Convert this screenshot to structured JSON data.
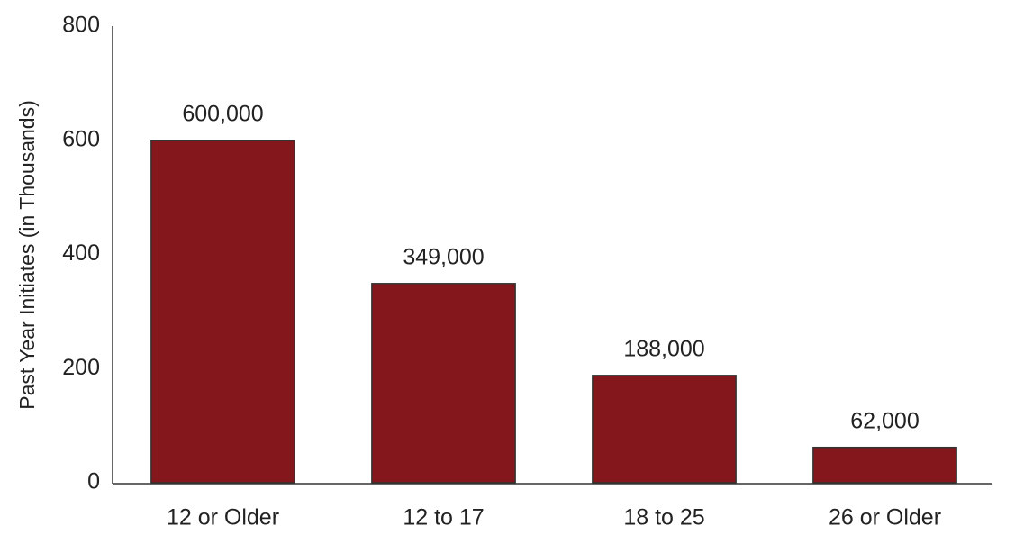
{
  "chart_data": {
    "type": "bar",
    "y_label": "Past Year Initiates (in Thousands)",
    "categories": [
      "12 or Older",
      "12 to 17",
      "18 to 25",
      "26 or Older"
    ],
    "values": [
      600,
      349,
      188,
      62
    ],
    "value_labels": [
      "600,000",
      "349,000",
      "188,000",
      "62,000"
    ],
    "color": "#84171b",
    "ylim": [
      0,
      800
    ],
    "yticks": [
      0,
      200,
      400,
      600,
      800
    ]
  }
}
